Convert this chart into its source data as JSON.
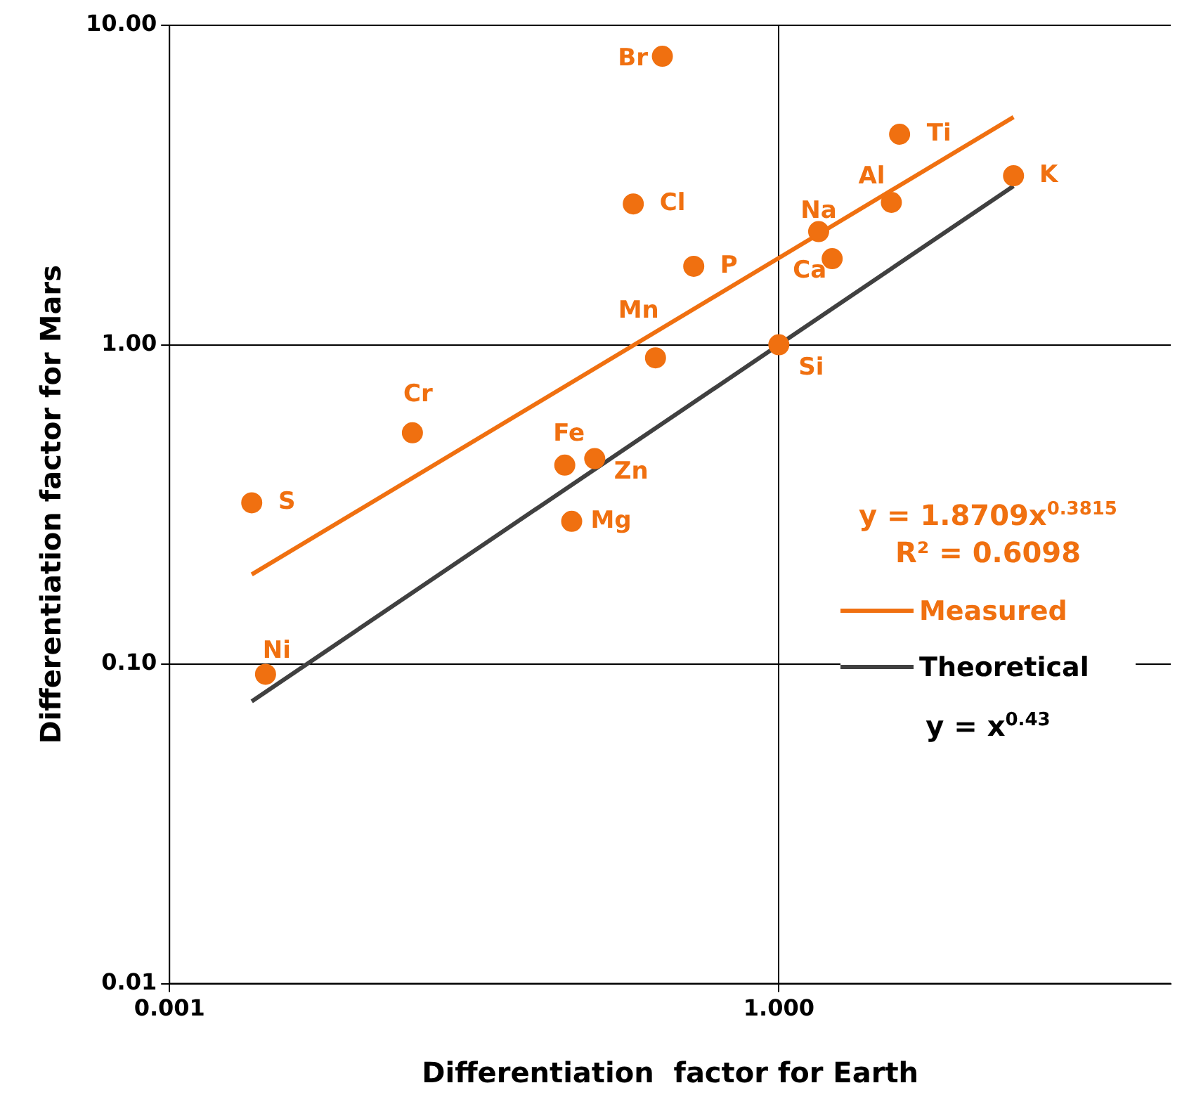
{
  "chart_data": {
    "type": "scatter",
    "xlabel": "Differentiation  factor for Earth",
    "ylabel": "Differentiation factor for Mars",
    "log": "xy",
    "grid": true,
    "legend": "right",
    "xlim": [
      0.001,
      85
    ],
    "xticks": [
      0.001,
      {
        "value": 1,
        "label": "1.000"
      }
    ],
    "ylim": [
      0.01,
      10
    ],
    "yticks": [
      {
        "value": 0.01,
        "label": "0.01"
      },
      {
        "value": 0.1,
        "label": "0.10"
      },
      {
        "value": 1,
        "label": "1.00"
      },
      {
        "value": 10,
        "label": "10.00"
      }
    ],
    "series": [
      {
        "marker": "circle",
        "color": "#f07010",
        "x": [
          0.267,
          3.93,
          14.3,
          3.58,
          0.192,
          1.57,
          1.83,
          0.381,
          1,
          0.247,
          0.0157,
          0.0883,
          0.124,
          0.0955,
          0.00254,
          0.00297
        ],
        "values": [
          8.0,
          4.56,
          3.38,
          2.79,
          2.76,
          2.26,
          1.86,
          1.76,
          1,
          0.91,
          0.53,
          0.42,
          0.44,
          0.28,
          0.32,
          0.093
        ],
        "value_labels": [
          "Br",
          "Ti",
          "K",
          "Al",
          "Cl",
          "Na",
          "Ca",
          "P",
          "Si",
          "Mn",
          "Cr",
          "Fe",
          "Zn",
          "Mg",
          "S",
          "Ni"
        ]
      },
      {
        "type": "line",
        "name": "Measured",
        "marker": "none",
        "color": "#f07010",
        "x": [
          0.00254,
          14.3
        ],
        "values": [
          0.191,
          5.16
        ]
      },
      {
        "type": "line",
        "name": "Theoretical",
        "marker": "none",
        "color": "#404040",
        "x": [
          0.00254,
          14.3
        ],
        "values": [
          0.0765,
          3.14
        ]
      }
    ],
    "annotations": [
      "y = 1.8709x$^{0.3815}$",
      "R² = 0.6098",
      "y = x$^{0.43}$"
    ]
  }
}
